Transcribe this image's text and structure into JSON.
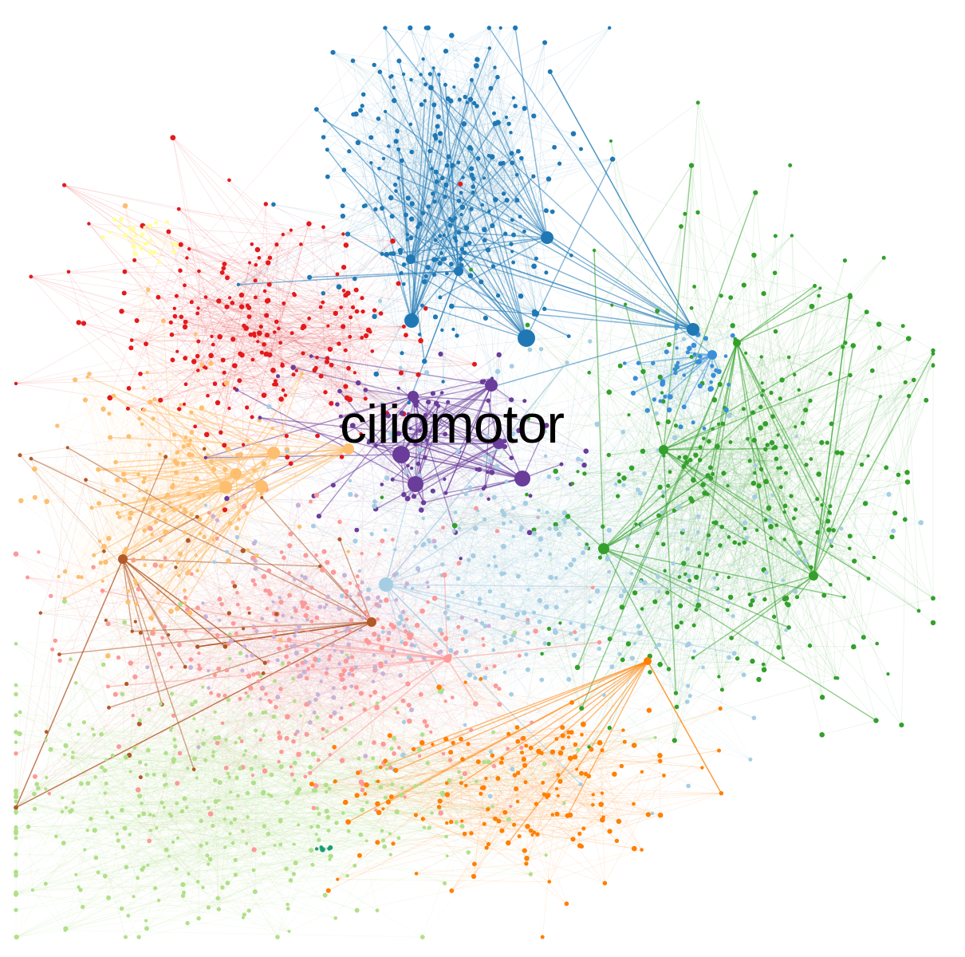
{
  "graph": {
    "label": "ciliomotor",
    "clusters": [
      {
        "id": "dark-blue",
        "color": "#1f78b4"
      },
      {
        "id": "red",
        "color": "#e31a1c"
      },
      {
        "id": "yellow",
        "color": "#ffff99"
      },
      {
        "id": "orange-light",
        "color": "#fdbf6f"
      },
      {
        "id": "purple",
        "color": "#6a3d9a"
      },
      {
        "id": "green",
        "color": "#33a02c"
      },
      {
        "id": "light-blue",
        "color": "#a6cee3"
      },
      {
        "id": "pink",
        "color": "#fb9a99"
      },
      {
        "id": "lavender",
        "color": "#cab2d6"
      },
      {
        "id": "brown",
        "color": "#b15928"
      },
      {
        "id": "light-green",
        "color": "#b2df8a"
      },
      {
        "id": "orange",
        "color": "#ff7f00"
      },
      {
        "id": "teal",
        "color": "#1b9e77"
      },
      {
        "id": "sky-blue",
        "color": "#3a8fd6"
      }
    ]
  }
}
